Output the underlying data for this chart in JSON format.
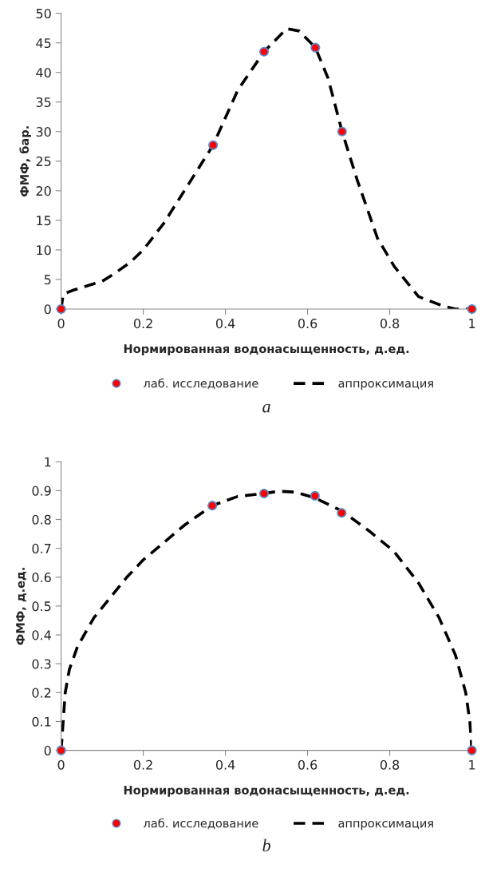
{
  "chart_data": [
    {
      "type": "line",
      "xlabel": "Нормированная водонасыщенность, д.ед.",
      "ylabel": "ФМФ, бар.",
      "xlim": [
        0,
        1
      ],
      "ylim": [
        0,
        50
      ],
      "xticks": [
        0,
        0.2,
        0.4,
        0.6,
        0.8,
        1
      ],
      "yticks": [
        0,
        5,
        10,
        15,
        20,
        25,
        30,
        35,
        40,
        45,
        50
      ],
      "grid": false,
      "legend": "bottom",
      "annotations": [
        "a"
      ],
      "series": [
        {
          "name": "лаб. исследование",
          "type": "scatter",
          "color": "#ff0000",
          "marker": "circle",
          "x": [
            0,
            0.37,
            0.494,
            0.619,
            0.684,
            1
          ],
          "values": [
            0,
            27.7,
            43.5,
            44.2,
            30,
            0
          ]
        },
        {
          "name": "аппроксимация",
          "color": "#000000",
          "line_style": "dashed",
          "marker": "none",
          "x": [
            0,
            0.005,
            0.03,
            0.1,
            0.13,
            0.17,
            0.2,
            0.25,
            0.3,
            0.37,
            0.43,
            0.494,
            0.549,
            0.58,
            0.619,
            0.65,
            0.684,
            0.72,
            0.77,
            0.811,
            0.87,
            0.93,
            0.96,
            1
          ],
          "values": [
            0,
            2.5,
            3.2,
            4.7,
            6,
            8,
            10,
            14.5,
            20,
            27.7,
            37,
            43.5,
            47.4,
            47,
            44.2,
            39,
            30,
            22,
            12,
            7.2,
            2.1,
            0.5,
            0,
            0
          ]
        }
      ]
    },
    {
      "type": "line",
      "xlabel": "Нормированная водонасыщенность, д.ед.",
      "ylabel": "ФМФ, д.ед.",
      "xlim": [
        0,
        1
      ],
      "ylim": [
        0,
        1
      ],
      "xticks": [
        0,
        0.2,
        0.4,
        0.6,
        0.8,
        1
      ],
      "yticks": [
        0,
        0.1,
        0.2,
        0.3,
        0.4,
        0.5,
        0.6,
        0.7,
        0.8,
        0.9,
        1
      ],
      "grid": false,
      "legend": "bottom",
      "annotations": [
        "b"
      ],
      "series": [
        {
          "name": "лаб. исследование",
          "type": "scatter",
          "color": "#ff0000",
          "marker": "circle",
          "x": [
            0,
            0.368,
            0.494,
            0.618,
            0.683,
            1
          ],
          "values": [
            0,
            0.848,
            0.89,
            0.882,
            0.823,
            0
          ]
        },
        {
          "name": "аппроксимация",
          "color": "#000000",
          "line_style": "dashed",
          "marker": "none",
          "x": [
            0,
            0.005,
            0.01,
            0.02,
            0.04,
            0.08,
            0.12,
            0.16,
            0.2,
            0.25,
            0.3,
            0.368,
            0.43,
            0.494,
            0.53,
            0.57,
            0.618,
            0.683,
            0.75,
            0.81,
            0.87,
            0.92,
            0.96,
            0.985,
            0.995,
            1
          ],
          "values": [
            0,
            0.1,
            0.2,
            0.28,
            0.36,
            0.46,
            0.53,
            0.6,
            0.66,
            0.72,
            0.78,
            0.848,
            0.88,
            0.89,
            0.898,
            0.895,
            0.875,
            0.83,
            0.76,
            0.69,
            0.58,
            0.46,
            0.33,
            0.2,
            0.1,
            0
          ]
        }
      ]
    }
  ]
}
